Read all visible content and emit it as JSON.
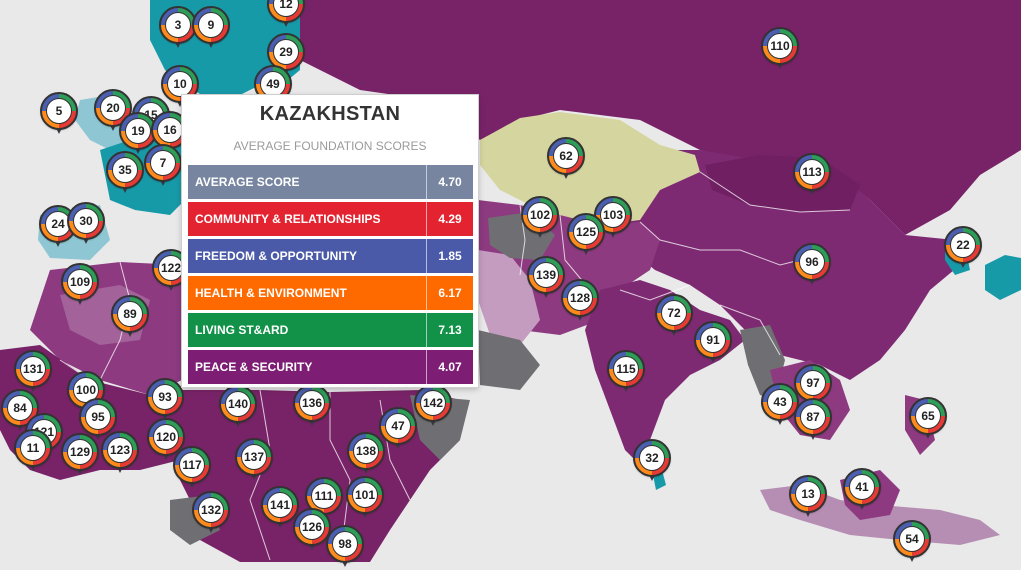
{
  "colors": {
    "ocean": "#e9e9ea",
    "purple_dark": "#782367",
    "purple_mid": "#8d3a80",
    "purple_light": "#b06aa5",
    "mauve": "#c49cc0",
    "teal": "#179aa8",
    "teal_light": "#8ec7d3",
    "khaki": "#d5d5a0",
    "gray": "#6f6f73",
    "pin_ring_green": "#2e9d57",
    "pin_ring_red": "#e63b35",
    "pin_ring_orange": "#ff8a1c",
    "pin_ring_blue": "#4b5fb0"
  },
  "tooltip": {
    "country": "KAZAKHSTAN",
    "subtitle": "AVERAGE FOUNDATION SCORES",
    "rows": [
      {
        "label": "AVERAGE SCORE",
        "value": "4.70",
        "color": "#7785a0"
      },
      {
        "label": "COMMUNITY & RELATIONSHIPS",
        "value": "4.29",
        "color": "#e3232f"
      },
      {
        "label": "FREEDOM & OPPORTUNITY",
        "value": "1.85",
        "color": "#4a5aa8"
      },
      {
        "label": "HEALTH & ENVIRONMENT",
        "value": "6.17",
        "color": "#ff6a00"
      },
      {
        "label": "LIVING ST&ARD",
        "value": "7.13",
        "color": "#119248"
      },
      {
        "label": "PEACE & SECURITY",
        "value": "4.07",
        "color": "#7d1d74"
      }
    ]
  },
  "markers": [
    {
      "label": "3"
    },
    {
      "label": "9"
    },
    {
      "label": "12"
    },
    {
      "label": "29"
    },
    {
      "label": "10"
    },
    {
      "label": "49"
    },
    {
      "label": "5"
    },
    {
      "label": "20"
    },
    {
      "label": "15"
    },
    {
      "label": "19"
    },
    {
      "label": "16"
    },
    {
      "label": "7"
    },
    {
      "label": "35"
    },
    {
      "label": "24"
    },
    {
      "label": "30"
    },
    {
      "label": "122"
    },
    {
      "label": "109"
    },
    {
      "label": "89"
    },
    {
      "label": "131"
    },
    {
      "label": "100"
    },
    {
      "label": "84"
    },
    {
      "label": "95"
    },
    {
      "label": "93"
    },
    {
      "label": "121"
    },
    {
      "label": "11"
    },
    {
      "label": "129"
    },
    {
      "label": "123"
    },
    {
      "label": "120"
    },
    {
      "label": "117"
    },
    {
      "label": "140"
    },
    {
      "label": "136"
    },
    {
      "label": "142"
    },
    {
      "label": "47"
    },
    {
      "label": "137"
    },
    {
      "label": "138"
    },
    {
      "label": "132"
    },
    {
      "label": "141"
    },
    {
      "label": "111"
    },
    {
      "label": "101"
    },
    {
      "label": "126"
    },
    {
      "label": "98"
    },
    {
      "label": "110"
    },
    {
      "label": "62"
    },
    {
      "label": "113"
    },
    {
      "label": "102"
    },
    {
      "label": "103"
    },
    {
      "label": "125"
    },
    {
      "label": "22"
    },
    {
      "label": "96"
    },
    {
      "label": "139"
    },
    {
      "label": "128"
    },
    {
      "label": "72"
    },
    {
      "label": "91"
    },
    {
      "label": "115"
    },
    {
      "label": "97"
    },
    {
      "label": "43"
    },
    {
      "label": "87"
    },
    {
      "label": "65"
    },
    {
      "label": "32"
    },
    {
      "label": "13"
    },
    {
      "label": "41"
    },
    {
      "label": "54"
    }
  ]
}
